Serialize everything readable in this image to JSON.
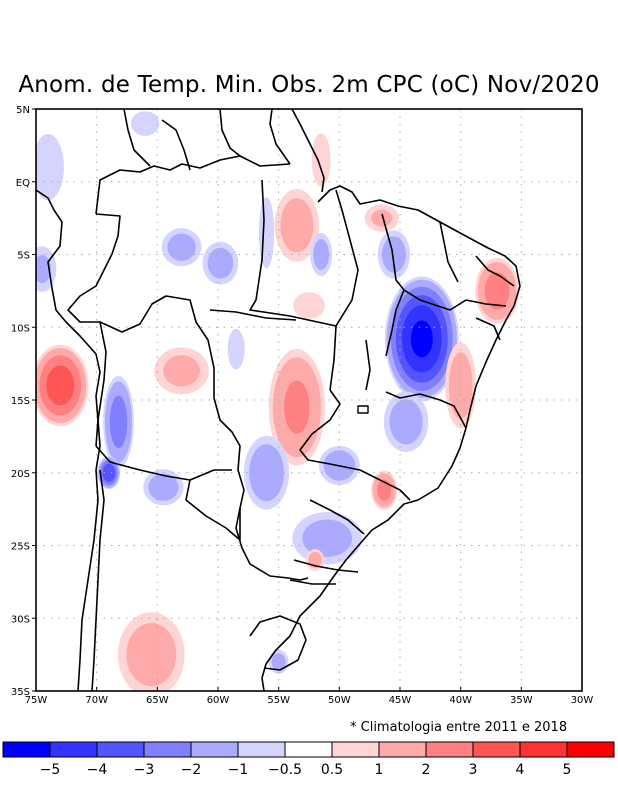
{
  "chart_data": {
    "type": "heatmap",
    "title": "Anom. de Temp. Min. Obs. 2m CPC (oC) Nov/2020",
    "xlabel": "",
    "ylabel": "",
    "x_range": [
      -75,
      -30
    ],
    "y_range": [
      -35,
      5
    ],
    "x_ticks": [
      {
        "value": -75,
        "label": "75W"
      },
      {
        "value": -70,
        "label": "70W"
      },
      {
        "value": -65,
        "label": "65W"
      },
      {
        "value": -60,
        "label": "60W"
      },
      {
        "value": -55,
        "label": "55W"
      },
      {
        "value": -50,
        "label": "50W"
      },
      {
        "value": -45,
        "label": "45W"
      },
      {
        "value": -40,
        "label": "40W"
      },
      {
        "value": -35,
        "label": "35W"
      },
      {
        "value": -30,
        "label": "30W"
      }
    ],
    "y_ticks": [
      {
        "value": 5,
        "label": "5N"
      },
      {
        "value": 0,
        "label": "EQ"
      },
      {
        "value": -5,
        "label": "5S"
      },
      {
        "value": -10,
        "label": "10S"
      },
      {
        "value": -15,
        "label": "15S"
      },
      {
        "value": -20,
        "label": "20S"
      },
      {
        "value": -25,
        "label": "25S"
      },
      {
        "value": -30,
        "label": "30S"
      },
      {
        "value": -35,
        "label": "35S"
      }
    ],
    "grid": true,
    "note": "* Climatologia entre 2011 e 2018",
    "colorbar": {
      "placement": "bottom",
      "levels": [
        "-5",
        "-4",
        "-3",
        "-2",
        "-1",
        "-0.5",
        "0.5",
        "1",
        "2",
        "3",
        "4",
        "5"
      ],
      "colors": [
        "#0000ff",
        "#3333ff",
        "#5555ff",
        "#8080ff",
        "#aaaaff",
        "#d4d4ff",
        "#ffffff",
        "#ffd4d4",
        "#ffaaaa",
        "#ff8080",
        "#ff5555",
        "#ff3333",
        "#ff0000"
      ]
    },
    "anomaly_blobs": [
      {
        "name": "nordeste-piaui-bahia-cold",
        "lon": -43.2,
        "lat": -10.8,
        "rlon": 3.2,
        "rlat": 4.5,
        "peak": -5.0
      },
      {
        "name": "nordeste-bahia-south-cold",
        "lon": -44.5,
        "lat": -16.5,
        "rlon": 2.2,
        "rlat": 2.5,
        "peak": -1.5
      },
      {
        "name": "maranhao-cold",
        "lon": -45.5,
        "lat": -5.0,
        "rlon": 1.6,
        "rlat": 2.0,
        "peak": -1.5
      },
      {
        "name": "rn-pb-pe-warm",
        "lon": -37.0,
        "lat": -7.5,
        "rlon": 2.0,
        "rlat": 2.5,
        "peak": 2.5
      },
      {
        "name": "bahia-coast-warm",
        "lon": -40.0,
        "lat": -14.0,
        "rlon": 1.5,
        "rlat": 3.5,
        "peak": 1.6
      },
      {
        "name": "para-north-warm",
        "lon": -53.5,
        "lat": -3.0,
        "rlon": 2.2,
        "rlat": 3.0,
        "peak": 1.5
      },
      {
        "name": "amapa-warm",
        "lon": -51.5,
        "lat": 1.5,
        "rlon": 1.2,
        "rlat": 2.8,
        "peak": 0.8
      },
      {
        "name": "maranhao-coast-warm",
        "lon": -46.5,
        "lat": -2.5,
        "rlon": 1.8,
        "rlat": 1.2,
        "peak": 1.2
      },
      {
        "name": "para-central-cold",
        "lon": -51.5,
        "lat": -5.0,
        "rlon": 1.1,
        "rlat": 1.8,
        "peak": -1.4
      },
      {
        "name": "amazonas-cold-1",
        "lon": -63.0,
        "lat": -4.5,
        "rlon": 2.0,
        "rlat": 1.6,
        "peak": -1.4
      },
      {
        "name": "amazonas-cold-2",
        "lon": -59.8,
        "lat": -5.6,
        "rlon": 1.8,
        "rlat": 1.8,
        "peak": -1.4
      },
      {
        "name": "para-west-cold",
        "lon": -56.0,
        "lat": -3.5,
        "rlon": 0.9,
        "rlat": 3.5,
        "peak": -0.9
      },
      {
        "name": "roraima-cold",
        "lon": -66.0,
        "lat": 4.0,
        "rlon": 1.8,
        "rlat": 1.3,
        "peak": -0.8
      },
      {
        "name": "colombia-cold",
        "lon": -74.0,
        "lat": 1.0,
        "rlon": 2.0,
        "rlat": 3.5,
        "peak": -0.8
      },
      {
        "name": "peru-north-cold",
        "lon": -74.5,
        "lat": -6.0,
        "rlon": 1.5,
        "rlat": 2.0,
        "peak": -1.2
      },
      {
        "name": "mato-grosso-warm",
        "lon": -53.5,
        "lat": -15.5,
        "rlon": 2.6,
        "rlat": 4.5,
        "peak": 2.2
      },
      {
        "name": "para-south-warm",
        "lon": -52.5,
        "lat": -8.5,
        "rlon": 2.0,
        "rlat": 1.4,
        "peak": 0.8
      },
      {
        "name": "peru-south-warm",
        "lon": -73.0,
        "lat": -14.0,
        "rlon": 2.5,
        "rlat": 3.0,
        "peak": 3.5
      },
      {
        "name": "bolivia-west-cold",
        "lon": -68.2,
        "lat": -16.5,
        "rlon": 1.4,
        "rlat": 3.5,
        "peak": -2.5
      },
      {
        "name": "bolivia-southwest-cold",
        "lon": -69.0,
        "lat": -20.0,
        "rlon": 1.0,
        "rlat": 1.2,
        "peak": -3.8
      },
      {
        "name": "bolivia-central-warm",
        "lon": -63.0,
        "lat": -13.0,
        "rlon": 2.8,
        "rlat": 2.0,
        "peak": 1.3
      },
      {
        "name": "rondonia-cold",
        "lon": -58.5,
        "lat": -11.5,
        "rlon": 1.0,
        "rlat": 2.0,
        "peak": -0.9
      },
      {
        "name": "chaco-cold",
        "lon": -64.5,
        "lat": -21.0,
        "rlon": 2.0,
        "rlat": 1.5,
        "peak": -1.5
      },
      {
        "name": "mato-grosso-sul-cold",
        "lon": -56.0,
        "lat": -20.0,
        "rlon": 2.2,
        "rlat": 3.0,
        "peak": -1.6
      },
      {
        "name": "goias-cold",
        "lon": -50.0,
        "lat": -19.5,
        "rlon": 2.0,
        "rlat": 1.6,
        "peak": -1.6
      },
      {
        "name": "sao-paulo-warm",
        "lon": -46.3,
        "lat": -21.2,
        "rlon": 1.2,
        "rlat": 1.5,
        "peak": 2.4
      },
      {
        "name": "parana-cold",
        "lon": -51.0,
        "lat": -24.5,
        "rlon": 3.5,
        "rlat": 2.2,
        "peak": -1.4
      },
      {
        "name": "parana-small-warm",
        "lon": -52.0,
        "lat": -26.0,
        "rlon": 0.9,
        "rlat": 0.9,
        "peak": 1.5
      },
      {
        "name": "argentina-central-warm",
        "lon": -65.5,
        "lat": -32.5,
        "rlon": 3.3,
        "rlat": 3.5,
        "peak": 1.5
      },
      {
        "name": "uruguay-cold",
        "lon": -55.0,
        "lat": -33.0,
        "rlon": 1.0,
        "rlat": 1.0,
        "peak": -1.4
      }
    ]
  }
}
